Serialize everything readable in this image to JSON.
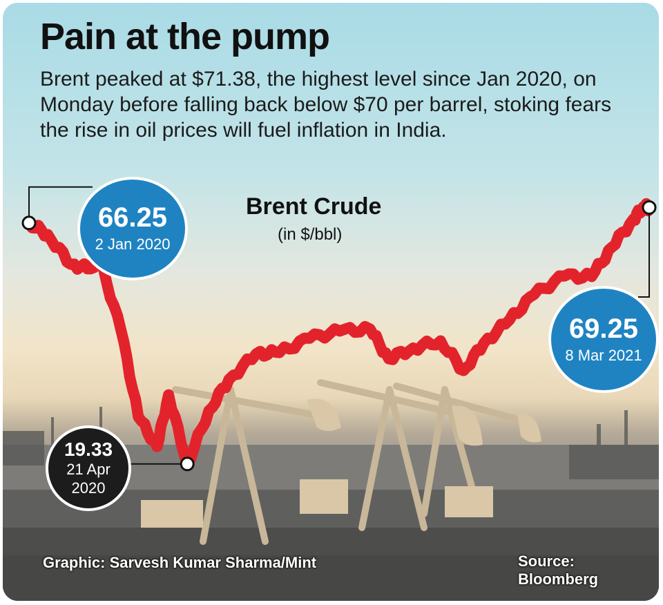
{
  "headline": "Pain at the pump",
  "subtitle": "Brent peaked at $71.38, the highest level since Jan 2020, on Monday before falling back below $70 per barrel, stoking fears the rise in oil prices will fuel inflation in India.",
  "credit": "Graphic: Sarvesh Kumar Sharma/Mint",
  "source": "Source: Bloomberg",
  "colors": {
    "line": "#e3232b",
    "callout_blue": "#1f83c2",
    "callout_dark": "#1c1c1c"
  },
  "callouts": {
    "start": {
      "value": "66.25",
      "date": "2 Jan 2020"
    },
    "low": {
      "value": "19.33",
      "date_line1": "21 Apr",
      "date_line2": "2020"
    },
    "end": {
      "value": "69.25",
      "date": "8 Mar 2021"
    }
  },
  "chart_data": {
    "type": "line",
    "title": "Brent Crude",
    "ylabel": "(in $/bbl)",
    "ylim": [
      15,
      72
    ],
    "series": [
      {
        "values": [
          {
            "x": "2020-01-02",
            "y": 66.25
          },
          {
            "x": "2020-01-15",
            "y": 64.0
          },
          {
            "x": "2020-01-31",
            "y": 58.2
          },
          {
            "x": "2020-02-14",
            "y": 57.3
          },
          {
            "x": "2020-02-20",
            "y": 59.3
          },
          {
            "x": "2020-03-06",
            "y": 45.3
          },
          {
            "x": "2020-03-18",
            "y": 28.5
          },
          {
            "x": "2020-03-31",
            "y": 22.7
          },
          {
            "x": "2020-04-08",
            "y": 32.8
          },
          {
            "x": "2020-04-21",
            "y": 19.33
          },
          {
            "x": "2020-05-06",
            "y": 29.7
          },
          {
            "x": "2020-05-20",
            "y": 35.8
          },
          {
            "x": "2020-06-08",
            "y": 40.8
          },
          {
            "x": "2020-06-24",
            "y": 41.0
          },
          {
            "x": "2020-07-15",
            "y": 43.8
          },
          {
            "x": "2020-08-05",
            "y": 45.2
          },
          {
            "x": "2020-08-26",
            "y": 45.6
          },
          {
            "x": "2020-09-08",
            "y": 39.8
          },
          {
            "x": "2020-09-25",
            "y": 41.9
          },
          {
            "x": "2020-10-14",
            "y": 43.3
          },
          {
            "x": "2020-10-30",
            "y": 37.5
          },
          {
            "x": "2020-11-13",
            "y": 42.8
          },
          {
            "x": "2020-12-01",
            "y": 47.4
          },
          {
            "x": "2020-12-18",
            "y": 52.3
          },
          {
            "x": "2021-01-08",
            "y": 55.9
          },
          {
            "x": "2021-01-27",
            "y": 55.8
          },
          {
            "x": "2021-02-10",
            "y": 61.5
          },
          {
            "x": "2021-02-25",
            "y": 67.0
          },
          {
            "x": "2021-03-04",
            "y": 69.4
          },
          {
            "x": "2021-03-08",
            "y": 69.25
          }
        ]
      }
    ]
  }
}
